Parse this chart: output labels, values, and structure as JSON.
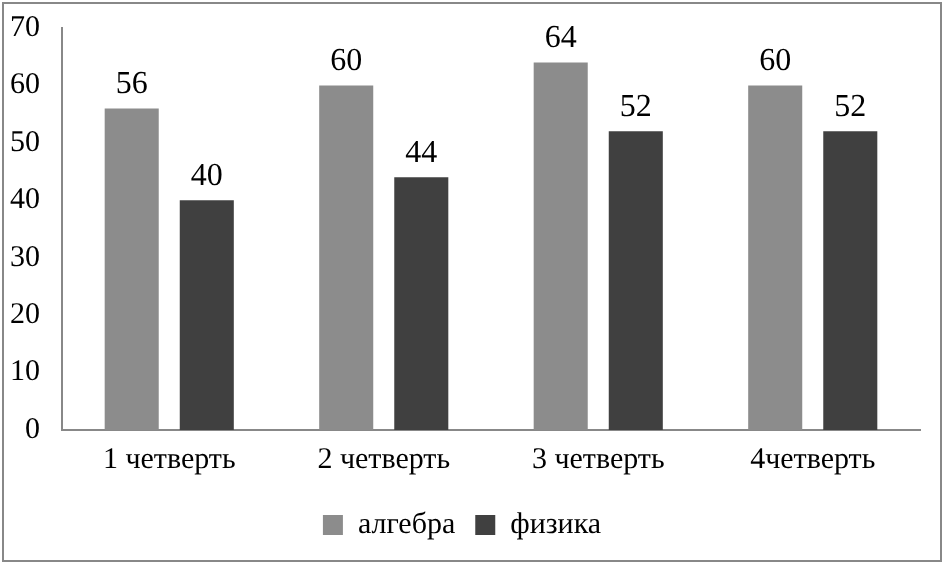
{
  "chart_data": {
    "type": "bar",
    "categories": [
      "1 четверть",
      "2 четверть",
      "3 четверть",
      "4четверть"
    ],
    "series": [
      {
        "name": "алгебра",
        "color": "#8c8c8c",
        "values": [
          56,
          60,
          64,
          60
        ]
      },
      {
        "name": "физика",
        "color": "#404040",
        "values": [
          40,
          44,
          52,
          52
        ]
      }
    ],
    "ylim": [
      0,
      70
    ],
    "yticks": [
      0,
      10,
      20,
      30,
      40,
      50,
      60,
      70
    ],
    "grid": false,
    "legend": "bottom",
    "data_labels": true
  }
}
